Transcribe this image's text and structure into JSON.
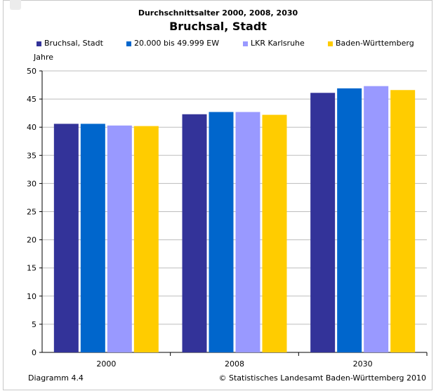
{
  "chart_data": {
    "type": "bar",
    "title": "Durchschnittsalter 2000, 2008, 2030",
    "subtitle": "Bruchsal, Stadt",
    "ylabel": "Jahre",
    "xlabel": "",
    "categories": [
      "2000",
      "2008",
      "2030"
    ],
    "ylim": [
      0,
      50
    ],
    "yticks": [
      0,
      5,
      10,
      15,
      20,
      25,
      30,
      35,
      40,
      45,
      50
    ],
    "grid": true,
    "legend_position": "top",
    "series": [
      {
        "name": "Bruchsal, Stadt",
        "color": "#333399",
        "values": [
          40.6,
          42.3,
          46.1
        ]
      },
      {
        "name": "20.000 bis 49.999 EW",
        "color": "#0066cc",
        "values": [
          40.6,
          42.7,
          46.9
        ]
      },
      {
        "name": "LKR Karlsruhe",
        "color": "#9999ff",
        "values": [
          40.3,
          42.7,
          47.3
        ]
      },
      {
        "name": "Baden-Württemberg",
        "color": "#ffcc00",
        "values": [
          40.2,
          42.2,
          46.6
        ]
      }
    ]
  },
  "footer": {
    "left": "Diagramm 4.4",
    "right": "© Statistisches Landesamt Baden-Württemberg 2010"
  }
}
